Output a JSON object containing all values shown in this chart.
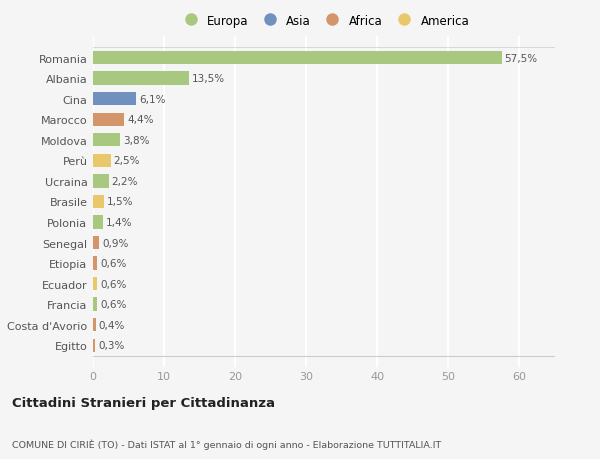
{
  "countries": [
    "Romania",
    "Albania",
    "Cina",
    "Marocco",
    "Moldova",
    "Perù",
    "Ucraina",
    "Brasile",
    "Polonia",
    "Senegal",
    "Etiopia",
    "Ecuador",
    "Francia",
    "Costa d'Avorio",
    "Egitto"
  ],
  "values": [
    57.5,
    13.5,
    6.1,
    4.4,
    3.8,
    2.5,
    2.2,
    1.5,
    1.4,
    0.9,
    0.6,
    0.6,
    0.6,
    0.4,
    0.3
  ],
  "labels": [
    "57,5%",
    "13,5%",
    "6,1%",
    "4,4%",
    "3,8%",
    "2,5%",
    "2,2%",
    "1,5%",
    "1,4%",
    "0,9%",
    "0,6%",
    "0,6%",
    "0,6%",
    "0,4%",
    "0,3%"
  ],
  "colors": [
    "#a8c880",
    "#a8c880",
    "#7090c0",
    "#d4956a",
    "#a8c880",
    "#e8c86a",
    "#a8c880",
    "#e8c86a",
    "#a8c880",
    "#d4956a",
    "#d4956a",
    "#e8c86a",
    "#a8c880",
    "#d4956a",
    "#d4956a"
  ],
  "legend_labels": [
    "Europa",
    "Asia",
    "Africa",
    "America"
  ],
  "legend_colors": [
    "#a8c880",
    "#7090c0",
    "#d4956a",
    "#e8c86a"
  ],
  "xlim": [
    0,
    65
  ],
  "xticks": [
    0,
    10,
    20,
    30,
    40,
    50,
    60
  ],
  "title": "Cittadini Stranieri per Cittadinanza",
  "subtitle": "COMUNE DI CIRIÈ (TO) - Dati ISTAT al 1° gennaio di ogni anno - Elaborazione TUTTITALIA.IT",
  "background_color": "#f5f5f5",
  "grid_color": "#ffffff",
  "bar_height": 0.65
}
